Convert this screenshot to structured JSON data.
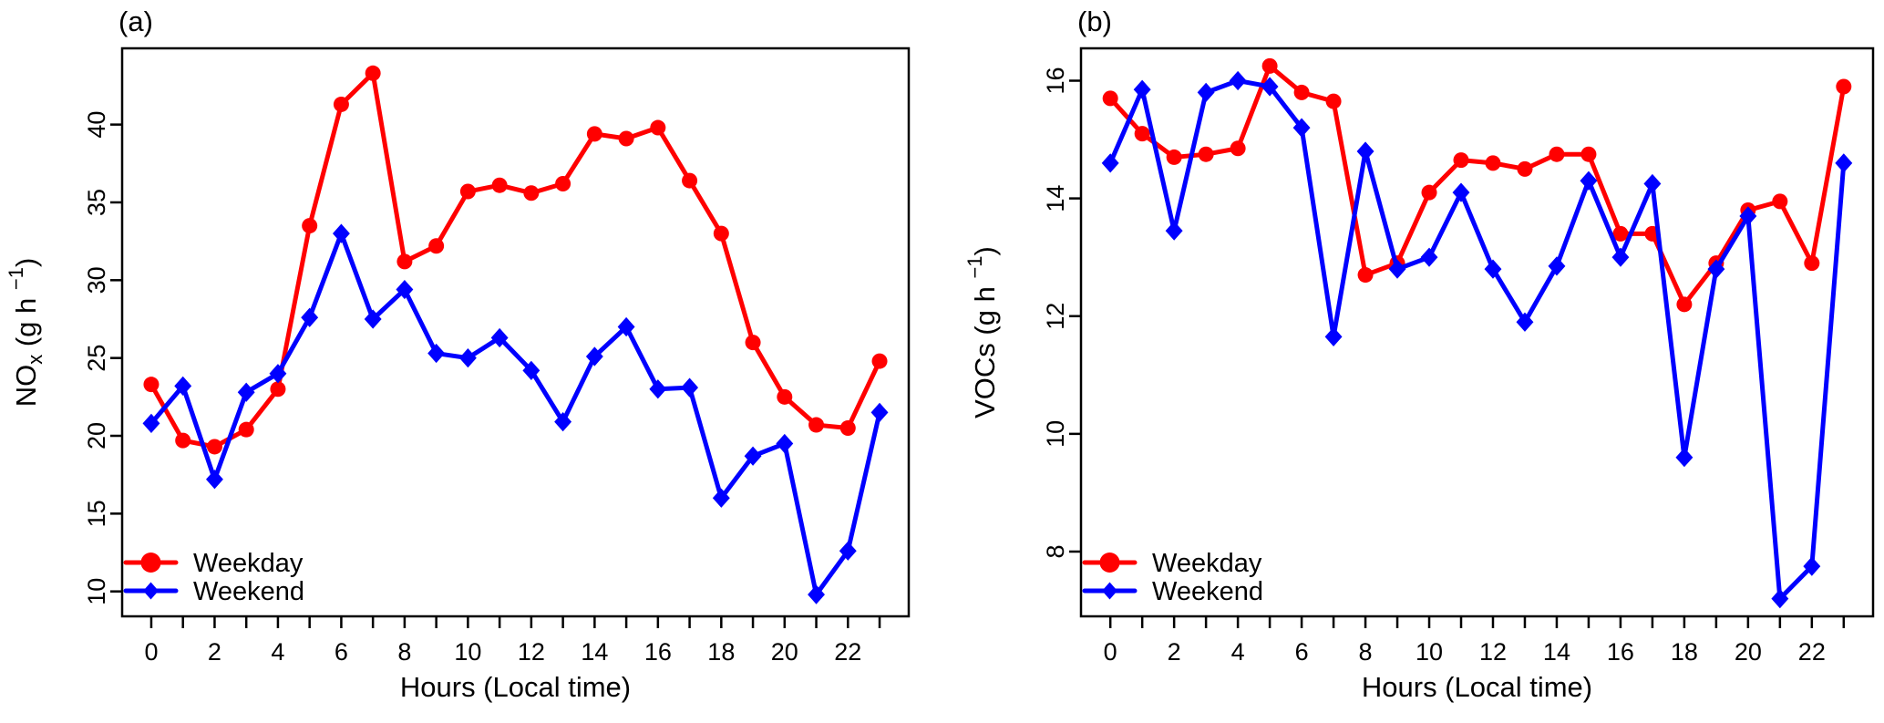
{
  "figure_title": "",
  "axis_color": "#000000",
  "background_color": "#ffffff",
  "legend": {
    "position": "bottom-left",
    "items": [
      {
        "label": "Weekday",
        "color": "#ff0000",
        "marker": "circle"
      },
      {
        "label": "Weekend",
        "color": "#0000ff",
        "marker": "diamond"
      }
    ]
  },
  "chart_data": [
    {
      "type": "line",
      "panel_label": "(a)",
      "xlabel": "Hours (Local time)",
      "ylabel": "NOx (g h−1)",
      "ylabel_parts": {
        "base": "NO",
        "sub": "x",
        "mid": " (g h ",
        "sup": "−1",
        "end": ")"
      },
      "x": [
        0,
        1,
        2,
        3,
        4,
        5,
        6,
        7,
        8,
        9,
        10,
        11,
        12,
        13,
        14,
        15,
        16,
        17,
        18,
        19,
        20,
        21,
        22,
        23
      ],
      "xtick_labels": [
        0,
        2,
        4,
        6,
        8,
        10,
        12,
        14,
        16,
        18,
        20,
        22
      ],
      "yticks": [
        10,
        15,
        20,
        25,
        30,
        35,
        40
      ],
      "xlim": [
        -0.92,
        23.92
      ],
      "ylim": [
        8.4,
        44.9
      ],
      "grid": false,
      "legend_position": "bottom-left",
      "series": [
        {
          "name": "Weekday",
          "color": "#ff0000",
          "marker": "circle",
          "values": [
            23.3,
            19.7,
            19.3,
            20.4,
            23.0,
            33.5,
            41.3,
            43.3,
            31.2,
            32.2,
            35.7,
            36.1,
            35.6,
            36.2,
            39.4,
            39.1,
            39.8,
            36.4,
            33.0,
            26.0,
            22.5,
            20.7,
            20.5,
            24.8
          ]
        },
        {
          "name": "Weekend",
          "color": "#0000ff",
          "marker": "diamond",
          "values": [
            20.8,
            23.2,
            17.2,
            22.8,
            24.0,
            27.6,
            33.0,
            27.5,
            29.4,
            25.3,
            25.0,
            26.3,
            24.2,
            20.9,
            25.1,
            27.0,
            23.0,
            23.1,
            16.0,
            18.7,
            19.5,
            9.8,
            12.6,
            21.5
          ]
        }
      ]
    },
    {
      "type": "line",
      "panel_label": "(b)",
      "xlabel": "Hours (Local time)",
      "ylabel": "VOCs (g h−1)",
      "ylabel_parts": {
        "base": "VOCs",
        "sub": "",
        "mid": " (g h ",
        "sup": "−1",
        "end": ")"
      },
      "x": [
        0,
        1,
        2,
        3,
        4,
        5,
        6,
        7,
        8,
        9,
        10,
        11,
        12,
        13,
        14,
        15,
        16,
        17,
        18,
        19,
        20,
        21,
        22,
        23
      ],
      "xtick_labels": [
        0,
        2,
        4,
        6,
        8,
        10,
        12,
        14,
        16,
        18,
        20,
        22
      ],
      "yticks": [
        8,
        10,
        12,
        14,
        16
      ],
      "xlim": [
        -0.92,
        23.92
      ],
      "ylim": [
        6.9,
        16.55
      ],
      "grid": false,
      "legend_position": "bottom-left",
      "series": [
        {
          "name": "Weekday",
          "color": "#ff0000",
          "marker": "circle",
          "values": [
            15.7,
            15.1,
            14.7,
            14.75,
            14.85,
            16.25,
            15.8,
            15.65,
            12.7,
            12.9,
            14.1,
            14.65,
            14.6,
            14.5,
            14.75,
            14.75,
            13.4,
            13.4,
            12.2,
            12.9,
            13.8,
            13.95,
            12.9,
            15.9
          ]
        },
        {
          "name": "Weekend",
          "color": "#0000ff",
          "marker": "diamond",
          "values": [
            14.6,
            15.85,
            13.45,
            15.8,
            16.0,
            15.9,
            15.2,
            11.65,
            14.8,
            12.8,
            13.0,
            14.1,
            12.8,
            11.9,
            12.85,
            14.3,
            13.0,
            14.25,
            9.6,
            12.8,
            13.7,
            7.2,
            7.75,
            14.6
          ]
        }
      ]
    }
  ]
}
